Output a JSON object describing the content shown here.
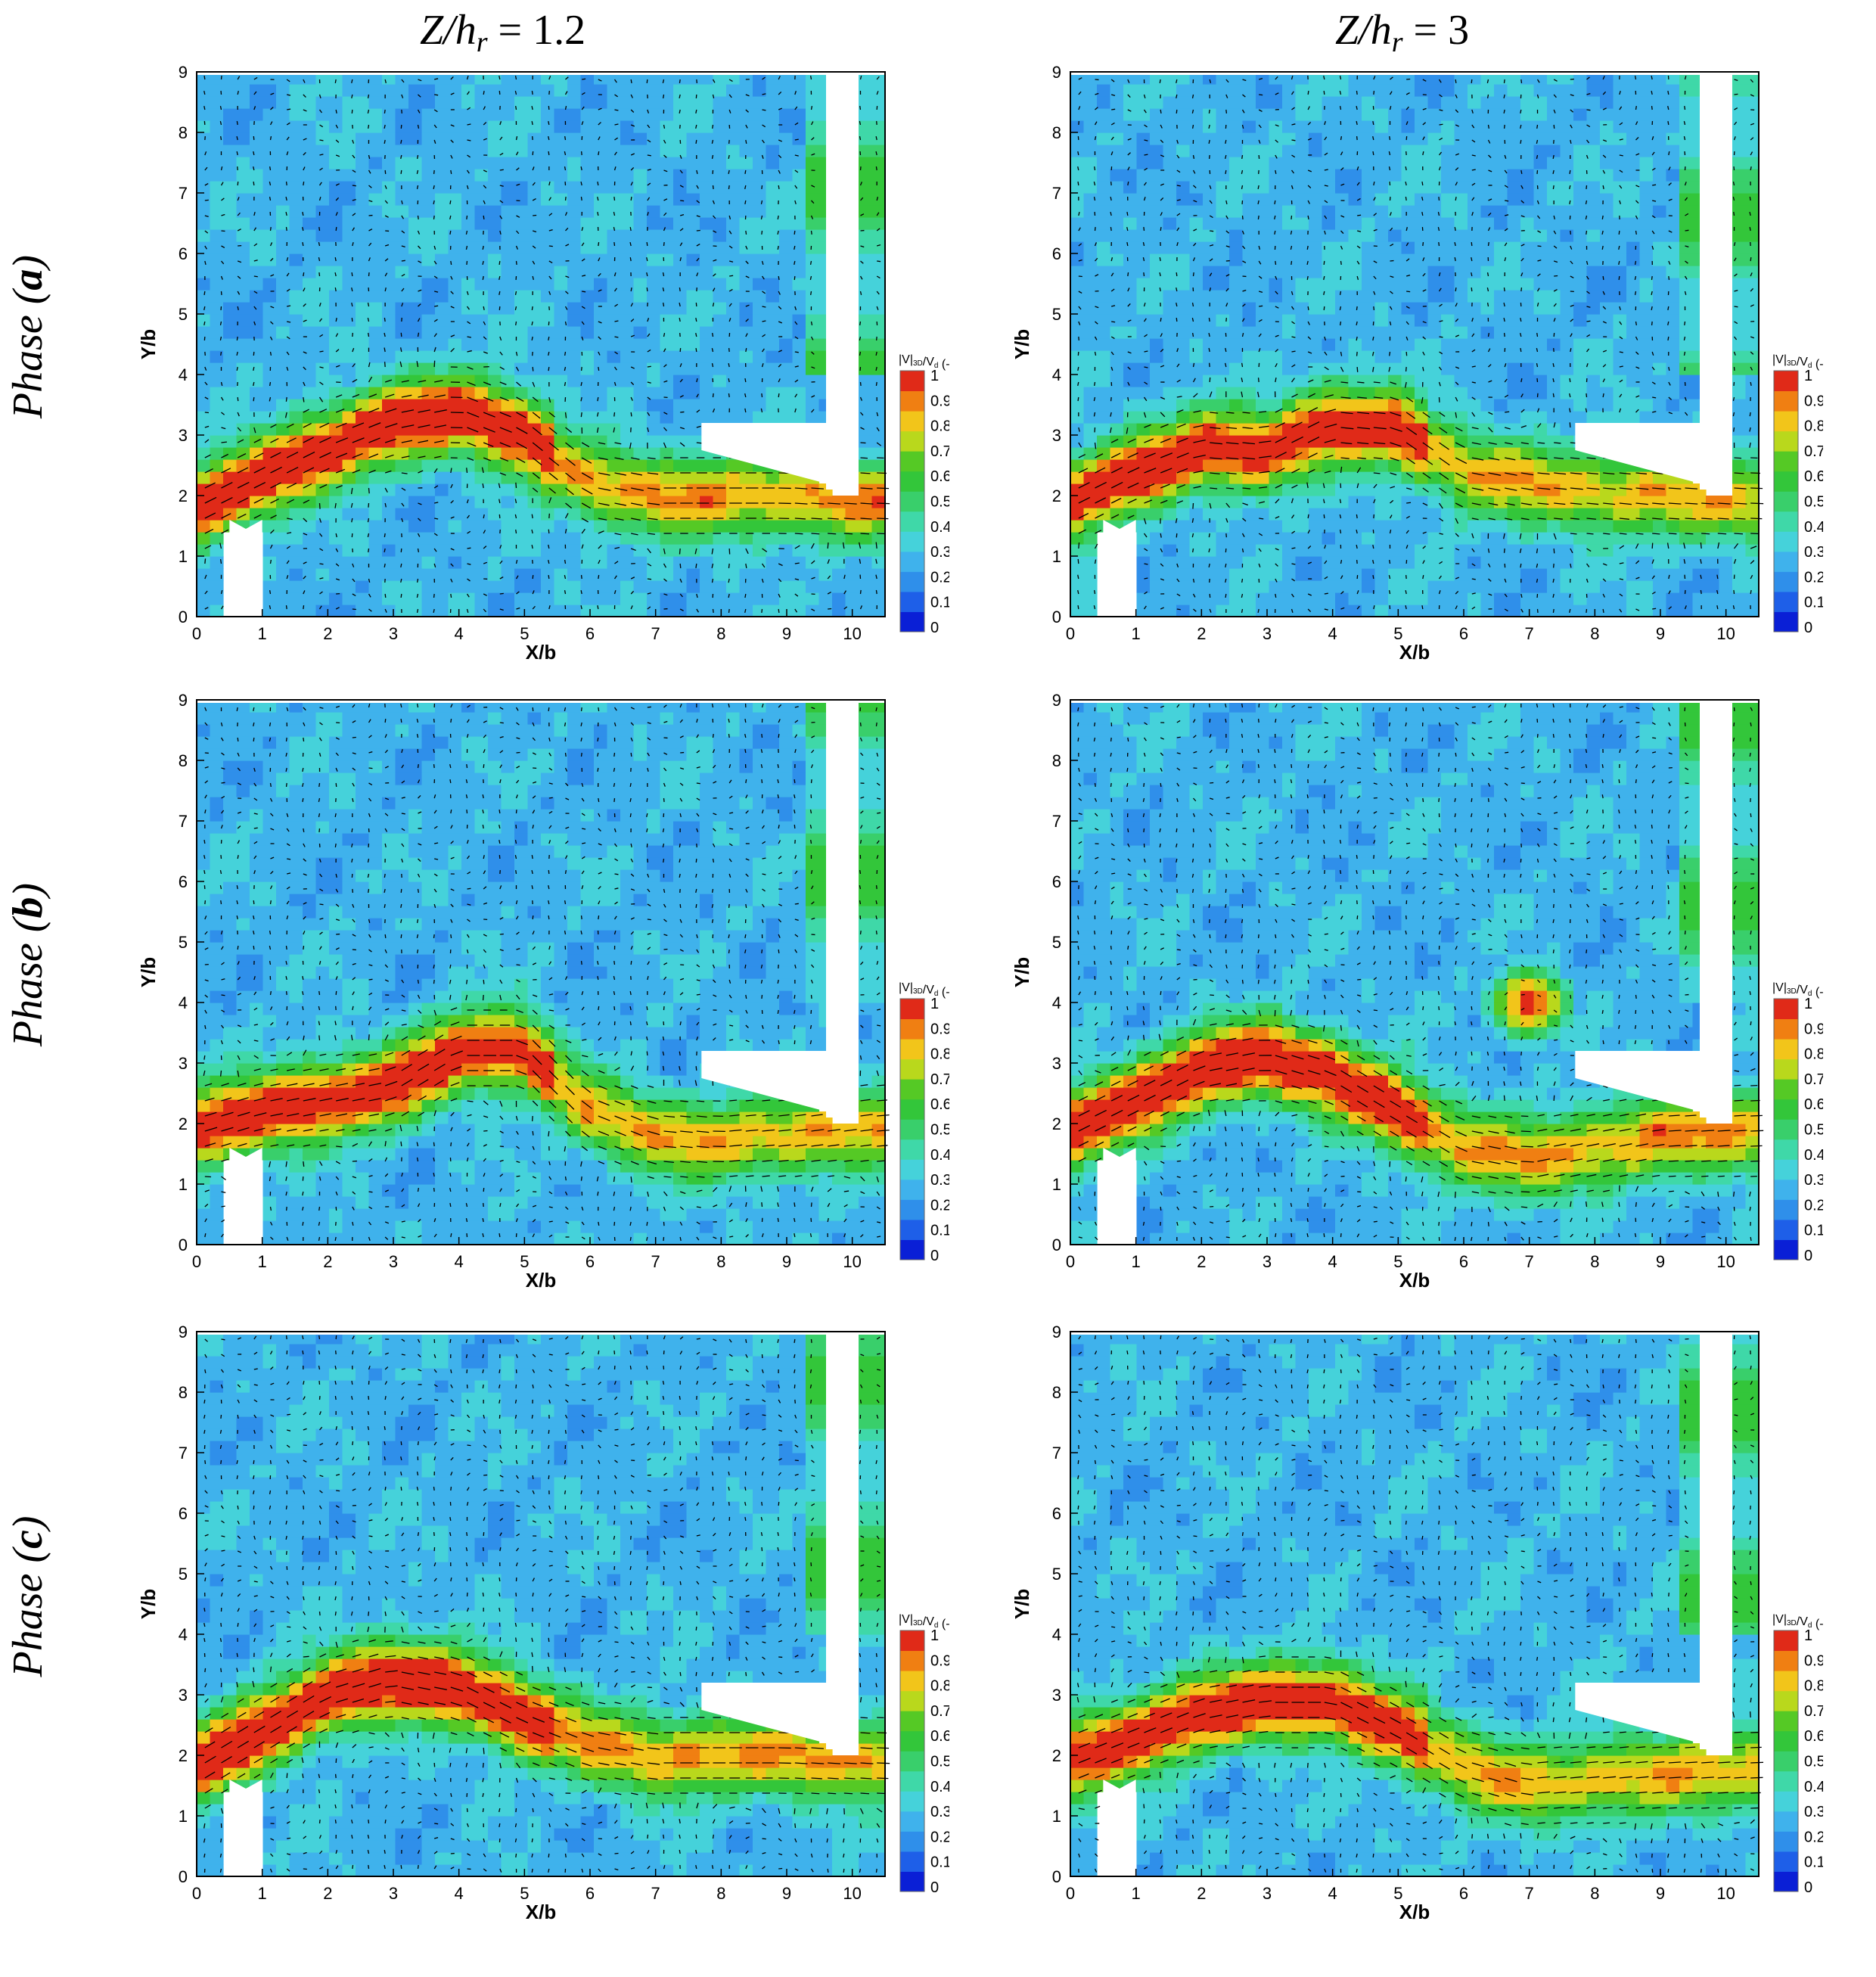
{
  "column_titles": [
    {
      "var": "Z/h",
      "sub": "r",
      "rest": " = 1.2"
    },
    {
      "var": "Z/h",
      "sub": "r",
      "rest": " = 3"
    }
  ],
  "row_titles": [
    {
      "pre": "Phase (",
      "letter": "a",
      "post": ")"
    },
    {
      "pre": "Phase (",
      "letter": "b",
      "post": ")"
    },
    {
      "pre": "Phase (",
      "letter": "c",
      "post": ")"
    }
  ],
  "colors": {
    "colormap": [
      "#0a1fd6",
      "#1e5fe8",
      "#2f8fea",
      "#3fb2ec",
      "#45d2da",
      "#3fd8a8",
      "#39cf6b",
      "#33c63a",
      "#55c925",
      "#b9d81c",
      "#f2c51a",
      "#f07f12",
      "#e02a18"
    ],
    "vectors": "#000000",
    "obstacle": "#ffffff"
  },
  "chart_data": [
    {
      "panel": "Z/hr = 1.2, Phase (a)",
      "type": "heatmap",
      "xlabel": "X/b",
      "ylabel": "Y/b",
      "xticks": [
        "0",
        "1",
        "2",
        "3",
        "4",
        "5",
        "6",
        "7",
        "8",
        "9",
        "10"
      ],
      "yticks": [
        "0",
        "1",
        "2",
        "3",
        "4",
        "5",
        "6",
        "7",
        "8",
        "9"
      ],
      "xlim": [
        0,
        10.5
      ],
      "ylim": [
        0,
        9
      ],
      "colorbar": {
        "label": "|V|",
        "label_sub": "3D",
        "label_rest": "/V",
        "label_sub2": "d",
        "label_end": " (-)",
        "ticks": [
          "0",
          "0.1",
          "0.2",
          "0.3",
          "0.4",
          "0.5",
          "0.6",
          "0.7",
          "0.8",
          "0.9",
          "1"
        ]
      },
      "jet": {
        "path": [
          [
            0,
            1.8
          ],
          [
            1,
            2.3
          ],
          [
            2,
            2.8
          ],
          [
            3,
            3.2
          ],
          [
            4,
            3.4
          ],
          [
            5,
            3.0
          ],
          [
            6,
            2.2
          ],
          [
            7,
            2.0
          ],
          [
            8,
            2.0
          ],
          [
            9,
            2.0
          ],
          [
            10.5,
            1.9
          ]
        ],
        "peak": 1.0
      },
      "blob": null
    },
    {
      "panel": "Z/hr = 3, Phase (a)",
      "type": "heatmap",
      "xlabel": "X/b",
      "ylabel": "Y/b",
      "xticks": [
        "0",
        "1",
        "2",
        "3",
        "4",
        "5",
        "6",
        "7",
        "8",
        "9",
        "10"
      ],
      "yticks": [
        "0",
        "1",
        "2",
        "3",
        "4",
        "5",
        "6",
        "7",
        "8",
        "9"
      ],
      "xlim": [
        0,
        10.5
      ],
      "ylim": [
        0,
        9
      ],
      "colorbar": {
        "label": "|V|",
        "label_sub": "3D",
        "label_rest": "/V",
        "label_sub2": "d",
        "label_end": " (-)",
        "ticks": [
          "0",
          "0.1",
          "0.2",
          "0.3",
          "0.4",
          "0.5",
          "0.6",
          "0.7",
          "0.8",
          "0.9",
          "1"
        ]
      },
      "jet": {
        "path": [
          [
            0,
            1.9
          ],
          [
            1,
            2.4
          ],
          [
            2,
            2.8
          ],
          [
            3,
            2.7
          ],
          [
            4,
            3.2
          ],
          [
            5,
            3.1
          ],
          [
            6,
            2.4
          ],
          [
            7,
            2.2
          ],
          [
            8,
            2.1
          ],
          [
            9,
            2.0
          ],
          [
            10.5,
            1.9
          ]
        ],
        "peak": 0.95
      },
      "blob": null
    },
    {
      "panel": "Z/hr = 1.2, Phase (b)",
      "type": "heatmap",
      "xlabel": "X/b",
      "ylabel": "Y/b",
      "xticks": [
        "0",
        "1",
        "2",
        "3",
        "4",
        "5",
        "6",
        "7",
        "8",
        "9",
        "10"
      ],
      "yticks": [
        "0",
        "1",
        "2",
        "3",
        "4",
        "5",
        "6",
        "7",
        "8",
        "9"
      ],
      "xlim": [
        0,
        10.5
      ],
      "ylim": [
        0,
        9
      ],
      "colorbar": {
        "label": "|V|",
        "label_sub": "3D",
        "label_rest": "/V",
        "label_sub2": "d",
        "label_end": " (-)",
        "ticks": [
          "0",
          "0.1",
          "0.2",
          "0.3",
          "0.4",
          "0.5",
          "0.6",
          "0.7",
          "0.8",
          "0.9",
          "1"
        ]
      },
      "jet": {
        "path": [
          [
            0,
            1.9
          ],
          [
            1,
            2.2
          ],
          [
            2,
            2.4
          ],
          [
            3,
            2.6
          ],
          [
            4,
            3.2
          ],
          [
            5,
            3.2
          ],
          [
            6,
            2.2
          ],
          [
            7,
            1.8
          ],
          [
            8,
            1.7
          ],
          [
            9,
            1.8
          ],
          [
            10.5,
            2.0
          ]
        ],
        "peak": 0.95
      },
      "blob": null
    },
    {
      "panel": "Z/hr = 3, Phase (b)",
      "type": "heatmap",
      "xlabel": "X/b",
      "ylabel": "Y/b",
      "xticks": [
        "0",
        "1",
        "2",
        "3",
        "4",
        "5",
        "6",
        "7",
        "8",
        "9",
        "10"
      ],
      "yticks": [
        "0",
        "1",
        "2",
        "3",
        "4",
        "5",
        "6",
        "7",
        "8",
        "9"
      ],
      "xlim": [
        0,
        10.5
      ],
      "ylim": [
        0,
        9
      ],
      "colorbar": {
        "label": "|V|",
        "label_sub": "3D",
        "label_rest": "/V",
        "label_sub2": "d",
        "label_end": " (-)",
        "ticks": [
          "0",
          "0.1",
          "0.2",
          "0.3",
          "0.4",
          "0.5",
          "0.6",
          "0.7",
          "0.8",
          "0.9",
          "1"
        ]
      },
      "jet": {
        "path": [
          [
            0,
            1.9
          ],
          [
            1,
            2.4
          ],
          [
            2,
            2.9
          ],
          [
            3,
            3.1
          ],
          [
            4,
            2.8
          ],
          [
            5,
            2.2
          ],
          [
            6,
            1.6
          ],
          [
            7,
            1.4
          ],
          [
            8,
            1.6
          ],
          [
            9,
            1.8
          ],
          [
            10.5,
            1.9
          ]
        ],
        "peak": 1.0
      },
      "blob": {
        "x": 7.0,
        "y": 4.0,
        "peak": 0.95
      }
    },
    {
      "panel": "Z/hr = 1.2, Phase (c)",
      "type": "heatmap",
      "xlabel": "X/b",
      "ylabel": "Y/b",
      "xticks": [
        "0",
        "1",
        "2",
        "3",
        "4",
        "5",
        "6",
        "7",
        "8",
        "9",
        "10"
      ],
      "yticks": [
        "0",
        "1",
        "2",
        "3",
        "4",
        "5",
        "6",
        "7",
        "8",
        "9"
      ],
      "xlim": [
        0,
        10.5
      ],
      "ylim": [
        0,
        9
      ],
      "colorbar": {
        "label": "|V|",
        "label_sub": "3D",
        "label_rest": "/V",
        "label_sub2": "d",
        "label_end": " (-)",
        "ticks": [
          "0",
          "0.1",
          "0.2",
          "0.3",
          "0.4",
          "0.5",
          "0.6",
          "0.7",
          "0.8",
          "0.9",
          "1"
        ]
      },
      "jet": {
        "path": [
          [
            0,
            1.8
          ],
          [
            1,
            2.4
          ],
          [
            2,
            3.0
          ],
          [
            3,
            3.3
          ],
          [
            4,
            3.1
          ],
          [
            5,
            2.6
          ],
          [
            6,
            2.2
          ],
          [
            7,
            2.0
          ],
          [
            8,
            2.0
          ],
          [
            9,
            2.0
          ],
          [
            10.5,
            1.9
          ]
        ],
        "peak": 1.0
      },
      "blob": null
    },
    {
      "panel": "Z/hr = 3, Phase (c)",
      "type": "heatmap",
      "xlabel": "X/b",
      "ylabel": "Y/b",
      "xticks": [
        "0",
        "1",
        "2",
        "3",
        "4",
        "5",
        "6",
        "7",
        "8",
        "9",
        "10"
      ],
      "yticks": [
        "0",
        "1",
        "2",
        "3",
        "4",
        "5",
        "6",
        "7",
        "8",
        "9"
      ],
      "xlim": [
        0,
        10.5
      ],
      "ylim": [
        0,
        9
      ],
      "colorbar": {
        "label": "|V|",
        "label_sub": "3D",
        "label_rest": "/V",
        "label_sub2": "d",
        "label_end": " (-)",
        "ticks": [
          "0",
          "0.1",
          "0.2",
          "0.3",
          "0.4",
          "0.5",
          "0.6",
          "0.7",
          "0.8",
          "0.9",
          "1"
        ]
      },
      "jet": {
        "path": [
          [
            0,
            1.9
          ],
          [
            1,
            2.3
          ],
          [
            2,
            2.7
          ],
          [
            3,
            2.9
          ],
          [
            4,
            2.9
          ],
          [
            5,
            2.4
          ],
          [
            6,
            1.8
          ],
          [
            7,
            1.5
          ],
          [
            8,
            1.6
          ],
          [
            9,
            1.7
          ],
          [
            10.5,
            1.8
          ]
        ],
        "peak": 0.95
      },
      "blob": null
    }
  ]
}
